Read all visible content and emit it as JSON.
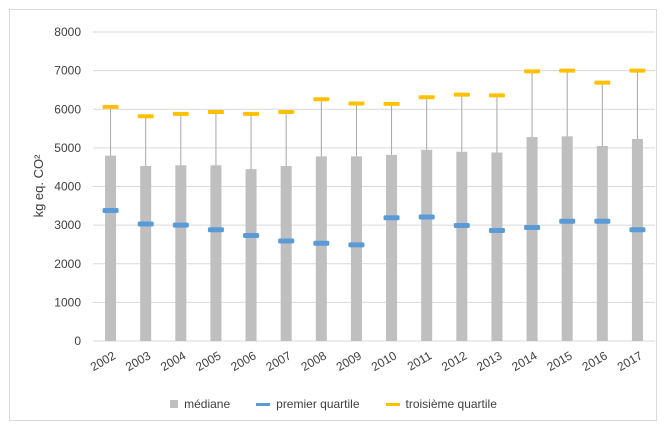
{
  "chart_data": {
    "type": "bar",
    "categories": [
      "2002",
      "2003",
      "2004",
      "2005",
      "2006",
      "2007",
      "2008",
      "2009",
      "2010",
      "2011",
      "2012",
      "2013",
      "2014",
      "2015",
      "2016",
      "2017"
    ],
    "series": [
      {
        "name": "médiane",
        "kind": "bar",
        "color": "#bfbfbf",
        "values": [
          4800,
          4530,
          4550,
          4550,
          4450,
          4530,
          4780,
          4780,
          4820,
          4950,
          4900,
          4880,
          5280,
          5300,
          5050,
          5230
        ]
      },
      {
        "name": "premier quartile",
        "kind": "marker",
        "color": "#5b9bd5",
        "values": [
          3380,
          3030,
          3000,
          2880,
          2730,
          2590,
          2530,
          2490,
          3190,
          3210,
          2990,
          2860,
          2940,
          3100,
          3100,
          2880
        ]
      },
      {
        "name": "troisième quartile",
        "kind": "marker",
        "color": "#ffc000",
        "values": [
          6060,
          5820,
          5880,
          5930,
          5880,
          5930,
          6260,
          6150,
          6140,
          6310,
          6380,
          6360,
          6980,
          7000,
          6690,
          7000
        ]
      }
    ],
    "ylabel": "kg eq. CO²",
    "ylim": [
      0,
      8000
    ],
    "yticks": [
      "0",
      "1000",
      "2000",
      "3000",
      "4000",
      "5000",
      "6000",
      "7000",
      "8000"
    ],
    "grid": true,
    "legend_position": "bottom"
  }
}
